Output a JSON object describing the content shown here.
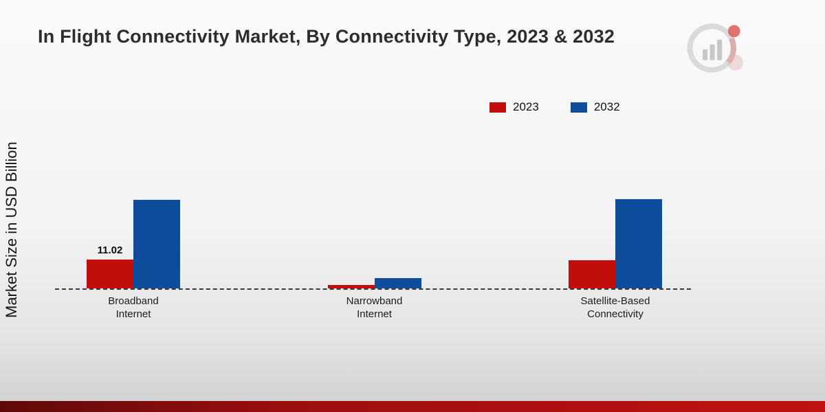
{
  "page": {
    "title": "In Flight Connectivity Market, By Connectivity Type, 2023 & 2032",
    "ylabel": "Market Size in USD Billion"
  },
  "legend": {
    "items": [
      {
        "label": "2023",
        "color": "#c20d0d"
      },
      {
        "label": "2032",
        "color": "#0e4c9c"
      }
    ]
  },
  "chart_data": {
    "type": "bar",
    "title": "In Flight Connectivity Market, By Connectivity Type, 2023 & 2032",
    "ylabel": "Market Size in USD Billion",
    "xlabel": "",
    "categories": [
      "Broadband Internet",
      "Narrowband Internet",
      "Satellite-Based Connectivity"
    ],
    "category_lines": [
      [
        "Broadband",
        "Internet"
      ],
      [
        "Narrowband",
        "Internet"
      ],
      [
        "Satellite-Based",
        "Connectivity"
      ]
    ],
    "series": [
      {
        "name": "2023",
        "color": "#c20d0d",
        "values": [
          11.02,
          1.3,
          10.8
        ],
        "data_labels": [
          "11.02",
          "",
          ""
        ]
      },
      {
        "name": "2032",
        "color": "#0e4c9c",
        "values": [
          34.0,
          3.9,
          34.2
        ],
        "data_labels": [
          "",
          "",
          ""
        ]
      }
    ],
    "ylim": [
      0,
      36
    ],
    "grid": false,
    "baseline_style": "dashed",
    "legend_position": "top-right"
  }
}
